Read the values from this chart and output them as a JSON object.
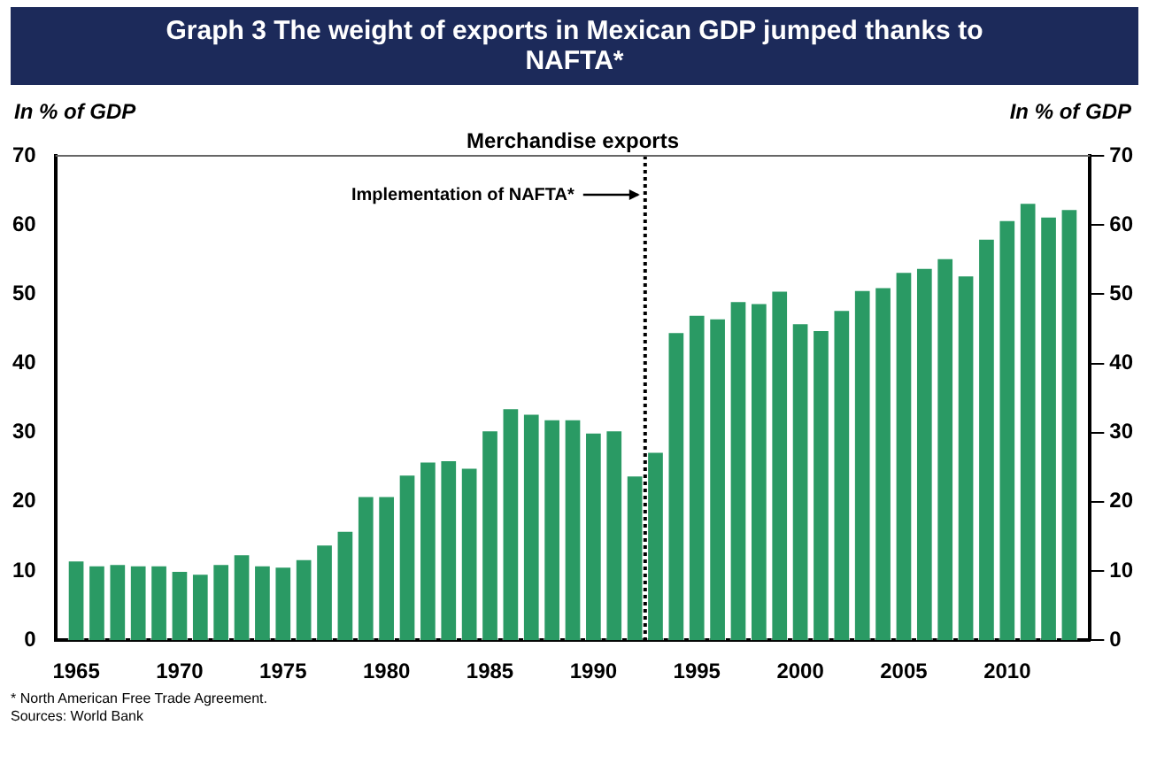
{
  "chart_data": {
    "type": "bar",
    "title": "Graph 3    The weight of exports in Mexican GDP jumped thanks to NAFTA*",
    "subtitle": "Merchandise exports",
    "ylabel": "In % of GDP",
    "y2label": "In % of GDP",
    "x": [
      1965,
      1966,
      1967,
      1968,
      1969,
      1970,
      1971,
      1972,
      1973,
      1974,
      1975,
      1976,
      1977,
      1978,
      1979,
      1980,
      1981,
      1982,
      1983,
      1984,
      1985,
      1986,
      1987,
      1988,
      1989,
      1990,
      1991,
      1992,
      1993,
      1994,
      1995,
      1996,
      1997,
      1998,
      1999,
      2000,
      2001,
      2002,
      2003,
      2004,
      2005,
      2006,
      2007,
      2008,
      2009,
      2010,
      2011,
      2012,
      2013
    ],
    "values": [
      11.5,
      10.8,
      11,
      10.8,
      10.8,
      10,
      9.6,
      11,
      12.4,
      10.8,
      10.6,
      11.7,
      13.8,
      15.8,
      20.8,
      20.8,
      23.9,
      25.8,
      26,
      24.9,
      30.3,
      33.5,
      32.7,
      31.9,
      31.9,
      30,
      30.3,
      23.8,
      27.2,
      44.5,
      47,
      46.5,
      49,
      48.7,
      50.5,
      45.8,
      44.8,
      47.7,
      50.6,
      51,
      53.2,
      53.8,
      55.2,
      52.7,
      58,
      60.7,
      63.2,
      61.2,
      62.3
    ],
    "color": "#2a9a64",
    "xlim": [
      1964,
      2014
    ],
    "xticks": [
      1965,
      1970,
      1975,
      1980,
      1985,
      1990,
      1995,
      2000,
      2005,
      2010
    ],
    "ylim": [
      0,
      70
    ],
    "yticks": [
      0,
      10,
      20,
      30,
      40,
      50,
      60,
      70
    ],
    "y2lim": [
      0,
      70
    ],
    "y2ticks": [
      0,
      10,
      20,
      30,
      40,
      50,
      60,
      70
    ],
    "ref_lines": [
      {
        "axis": "x",
        "value": 1992.5,
        "label": "Implementation of NAFTA*",
        "line_style": "dotted",
        "color": "#000000"
      }
    ],
    "grid": false,
    "legend": false,
    "annotations": [
      "* North American Free Trade Agreement.",
      "Sources: World Bank"
    ]
  }
}
